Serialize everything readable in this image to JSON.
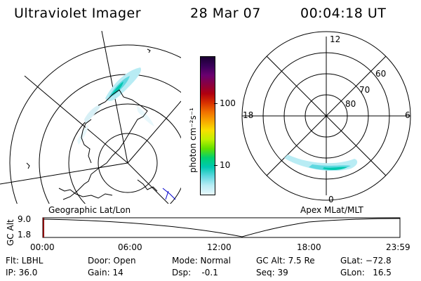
{
  "header": {
    "title": "Ultraviolet Imager",
    "date": "28 Mar 07",
    "time": "00:04:18 UT"
  },
  "left_panel": {
    "caption": "Geographic Lat/Lon"
  },
  "colorbar": {
    "unit_label": "photon cm⁻²s⁻¹",
    "ticks": [
      "100",
      "10"
    ],
    "colors": [
      "#1a0033",
      "#3a005a",
      "#6a0070",
      "#8a0040",
      "#b00010",
      "#d83000",
      "#f07000",
      "#f8a800",
      "#f8e000",
      "#c0f000",
      "#60e000",
      "#00d070",
      "#00c8b0",
      "#60d8e0",
      "#b8ecf4",
      "#e8f8fc"
    ]
  },
  "right_panel": {
    "caption": "Apex MLat/MLT",
    "mlt_labels": {
      "top": "12",
      "left": "18",
      "right": "6",
      "bottom": "0"
    },
    "lat_labels": [
      "80",
      "70",
      "60"
    ]
  },
  "timeline": {
    "axis_label": "GC Alt",
    "y_ticks": [
      "9.0",
      "1.8"
    ],
    "x_ticks": [
      "00:00",
      "06:00",
      "12:00",
      "18:00",
      "23:59"
    ]
  },
  "status": {
    "filter": "Flt: LBHL",
    "ip": "IP: 36.0",
    "door": "Door: Open",
    "gain": "Gain: 14",
    "mode": "Mode: Normal",
    "dsp": "Dsp:    -0.1",
    "gc_alt": "GC Alt: 7.5 Re",
    "seq": "Seq: 39",
    "glat": "GLat: −72.8",
    "glon": "GLon:   16.5"
  }
}
